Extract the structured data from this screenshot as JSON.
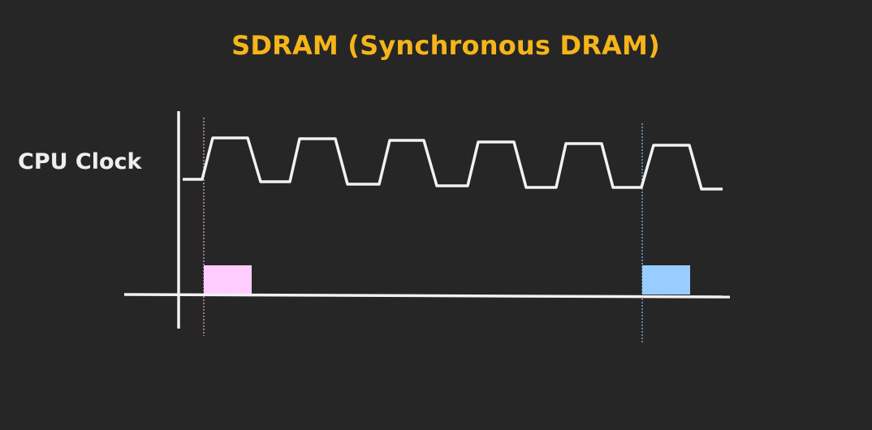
{
  "title": "SDRAM (Synchronous DRAM)",
  "signal_label": "CPU Clock",
  "colors": {
    "background": "#262626",
    "title": "#f5b51a",
    "text": "#eeeeee",
    "lines": "#f2f2f2",
    "marker_left": "#ffccff",
    "marker_right": "#99ccff",
    "guide_left": "#d9a0d9",
    "guide_right": "#7fb7e6"
  },
  "clock": {
    "cycles": 6,
    "markers": [
      {
        "name": "request-marker",
        "color_key": "marker_left"
      },
      {
        "name": "response-marker",
        "color_key": "marker_right"
      }
    ]
  }
}
